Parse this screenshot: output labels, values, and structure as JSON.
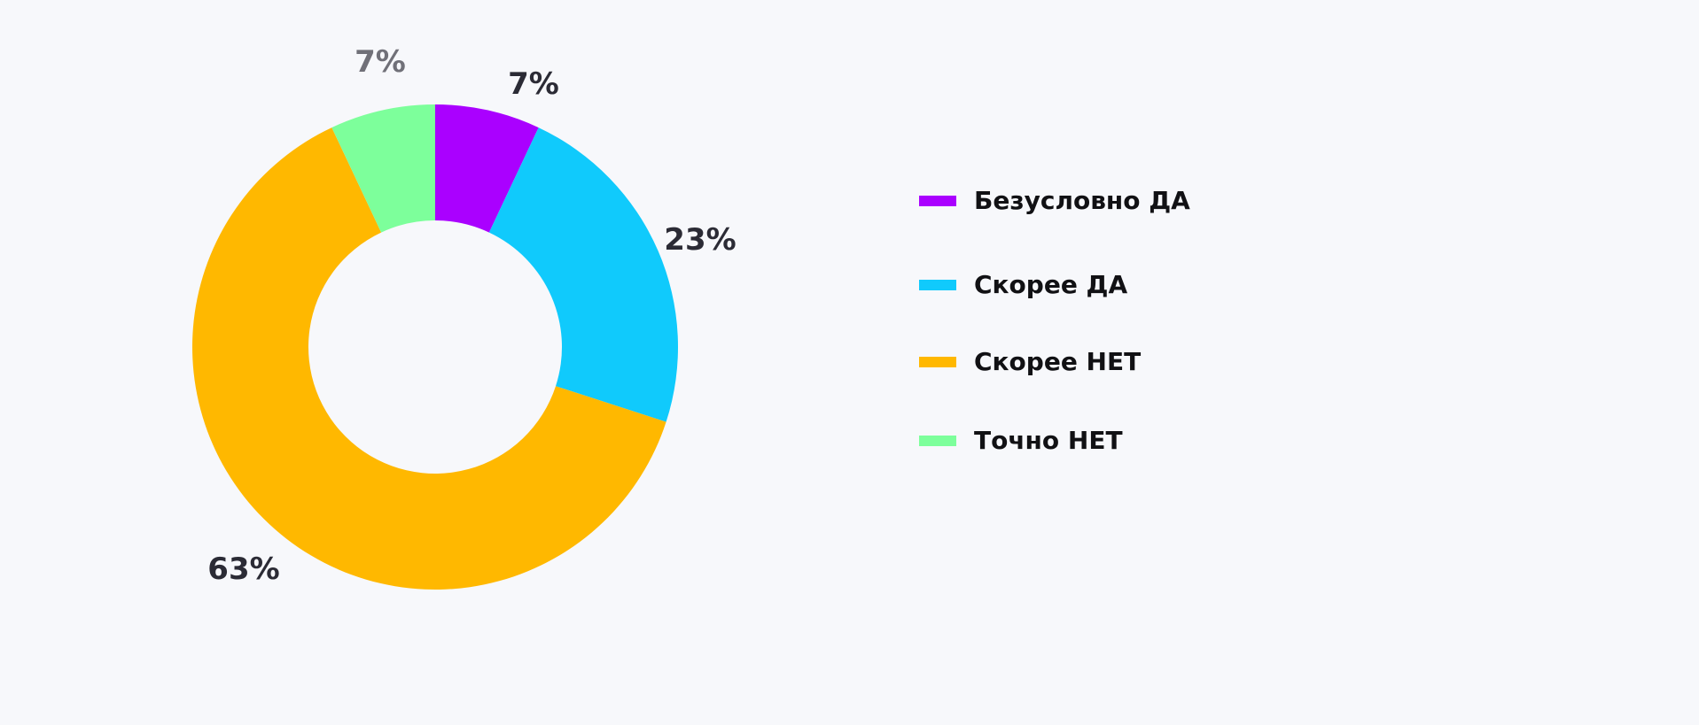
{
  "chart_data": {
    "type": "pie",
    "title": "",
    "donut": true,
    "series": [
      {
        "name": "",
        "slices": [
          {
            "label": "Безусловно ДА",
            "value": 7,
            "display": "7%",
            "color": "#aa00ff"
          },
          {
            "label": "Скорее ДА",
            "value": 23,
            "display": "23%",
            "color": "#10cafc"
          },
          {
            "label": "Скорее НЕТ",
            "value": 63,
            "display": "63%",
            "color": "#ffb800"
          },
          {
            "label": "Точно НЕТ",
            "value": 7,
            "display": "7%",
            "color": "#7dff9b"
          }
        ]
      }
    ],
    "legend_position": "right"
  },
  "background_color": "#f7f8fb"
}
